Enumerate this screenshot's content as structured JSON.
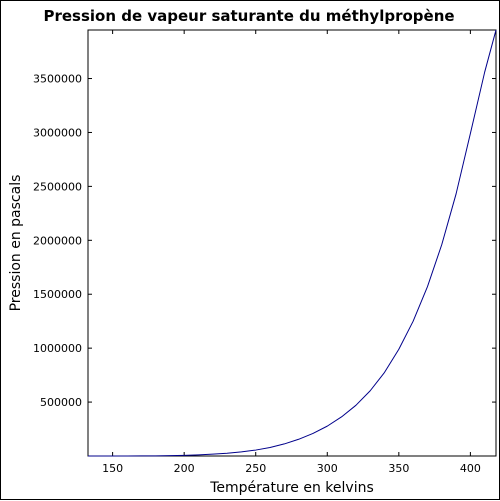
{
  "chart_data": {
    "type": "line",
    "title": "Pression de vapeur saturante du méthylpropène",
    "xlabel": "Température en kelvins",
    "ylabel": "Pression en pascals",
    "xlim": [
      132.8,
      417.9
    ],
    "ylim": [
      0,
      3950000
    ],
    "xticks": [
      150,
      200,
      250,
      300,
      350,
      400
    ],
    "yticks": [
      500000,
      1000000,
      1500000,
      2000000,
      2500000,
      3000000,
      3500000
    ],
    "grid": false,
    "legend": "none",
    "series": [
      {
        "color": "#00008b",
        "x": [
          132.8,
          140,
          150,
          160,
          170,
          180,
          190,
          200,
          210,
          220,
          230,
          240,
          250,
          260,
          270,
          280,
          290,
          300,
          310,
          320,
          330,
          340,
          350,
          360,
          370,
          380,
          390,
          400,
          410,
          417.9
        ],
        "y": [
          0,
          20,
          100,
          300,
          750,
          1650,
          3300,
          6000,
          10500,
          17000,
          26000,
          38000,
          55000,
          79000,
          112000,
          155000,
          209000,
          277000,
          363000,
          470000,
          605000,
          775000,
          990000,
          1250000,
          1570000,
          1960000,
          2430000,
          2990000,
          3560000,
          3950000
        ]
      }
    ]
  }
}
